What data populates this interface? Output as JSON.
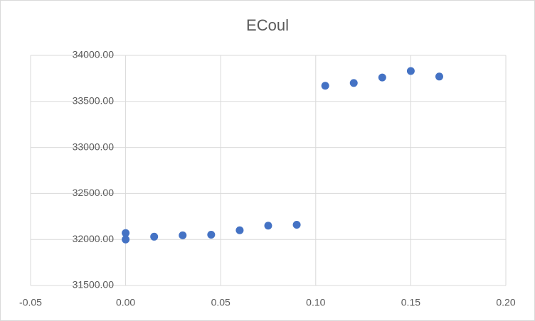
{
  "chart_data": {
    "type": "scatter",
    "title": "ECoul",
    "x": [
      0,
      0,
      0.015,
      0.03,
      0.045,
      0.06,
      0.075,
      0.09,
      0.105,
      0.12,
      0.135,
      0.15,
      0.165
    ],
    "values": [
      32070,
      32000,
      32030,
      32045,
      32052,
      32100,
      32150,
      32160,
      33670,
      33700,
      33760,
      33830,
      33770
    ],
    "color": "#4472c4",
    "xlim": [
      -0.05,
      0.2
    ],
    "xticks": [
      -0.05,
      {
        "value": 0,
        "label": "0.00"
      },
      0.05,
      {
        "value": 0.1,
        "label": "0.10"
      },
      0.15,
      {
        "value": 0.2,
        "label": "0.20"
      }
    ],
    "ylim": [
      31500,
      34000
    ],
    "yticks": [
      {
        "value": 31500,
        "label": "31500.00"
      },
      {
        "value": 32000,
        "label": "32000.00"
      },
      {
        "value": 32500,
        "label": "32500.00"
      },
      {
        "value": 33000,
        "label": "33000.00"
      },
      {
        "value": 33500,
        "label": "33500.00"
      },
      {
        "value": 34000,
        "label": "34000.00"
      }
    ],
    "grid": true
  }
}
